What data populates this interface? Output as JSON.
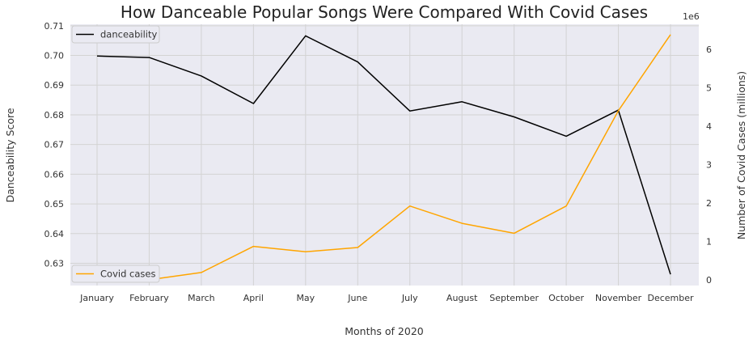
{
  "chart_data": {
    "type": "line",
    "title": "How Danceable Popular Songs Were Compared With Covid Cases",
    "xlabel": "Months of 2020",
    "ylabel": "Danceability Score",
    "ylabel_right": "Number of Covid Cases (millions)",
    "right_axis_offset_label": "1e6",
    "categories": [
      "January",
      "February",
      "March",
      "April",
      "May",
      "June",
      "July",
      "August",
      "September",
      "October",
      "November",
      "December"
    ],
    "series": [
      {
        "name": "danceability",
        "axis": "left",
        "color": "#000000",
        "values": [
          0.6998,
          0.6993,
          0.6931,
          0.6838,
          0.7066,
          0.6978,
          0.6813,
          0.6844,
          0.6793,
          0.6728,
          0.6816,
          0.6263
        ]
      },
      {
        "name": "Covid cases",
        "axis": "right",
        "color": "#FFA500",
        "values": [
          null,
          0.0,
          0.19,
          0.87,
          0.73,
          0.84,
          1.92,
          1.47,
          1.21,
          1.92,
          4.4,
          6.38
        ]
      }
    ],
    "ylim": [
      0.6225,
      0.7105
    ],
    "ylim_right": [
      -0.15,
      6.65
    ],
    "yticks": [
      "0.63",
      "0.64",
      "0.65",
      "0.66",
      "0.67",
      "0.68",
      "0.69",
      "0.70",
      "0.71"
    ],
    "yticks_right": [
      "0",
      "1",
      "2",
      "3",
      "4",
      "5",
      "6"
    ],
    "grid": true,
    "legend_left": "top-left",
    "legend_right": "bottom-left"
  }
}
